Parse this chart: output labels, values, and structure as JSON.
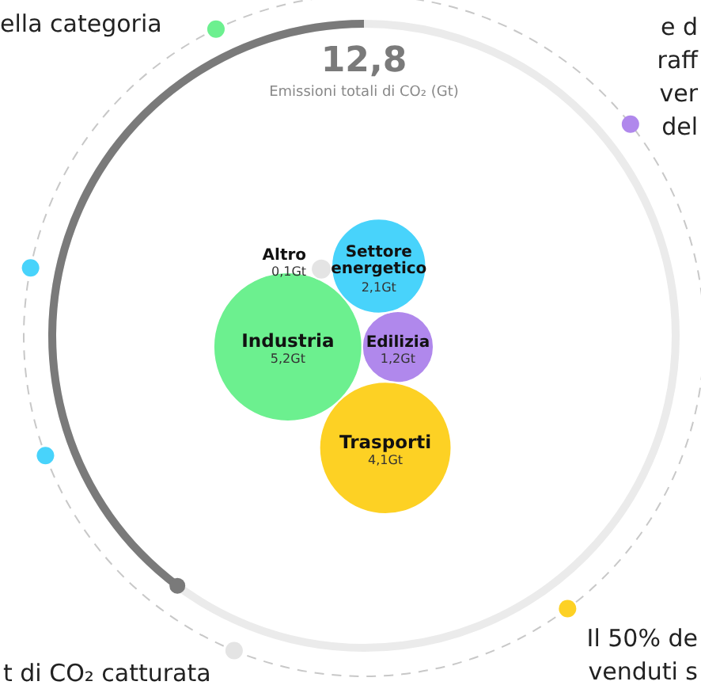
{
  "chart_data": {
    "type": "other",
    "title": "12,8",
    "subtitle": "Emissioni totali di CO₂ (Gt)",
    "categories": [
      "Industria",
      "Edilizia",
      "Trasporti",
      "Settore energetico",
      "Altro"
    ],
    "values": [
      5.2,
      1.2,
      4.1,
      2.1,
      0.1
    ],
    "value_labels": [
      "5,2Gt",
      "1,2Gt",
      "4,1Gt",
      "2,1Gt",
      "0,1Gt"
    ],
    "colors": [
      "#6cf08f",
      "#b088ec",
      "#fdd124",
      "#48d3fb",
      "#e4e4e4"
    ],
    "annotations": [
      "ella categoria",
      "e d",
      "raff",
      "ver",
      "del",
      "Il 50% de",
      "venduti s",
      "t di CO₂ catturata"
    ]
  }
}
